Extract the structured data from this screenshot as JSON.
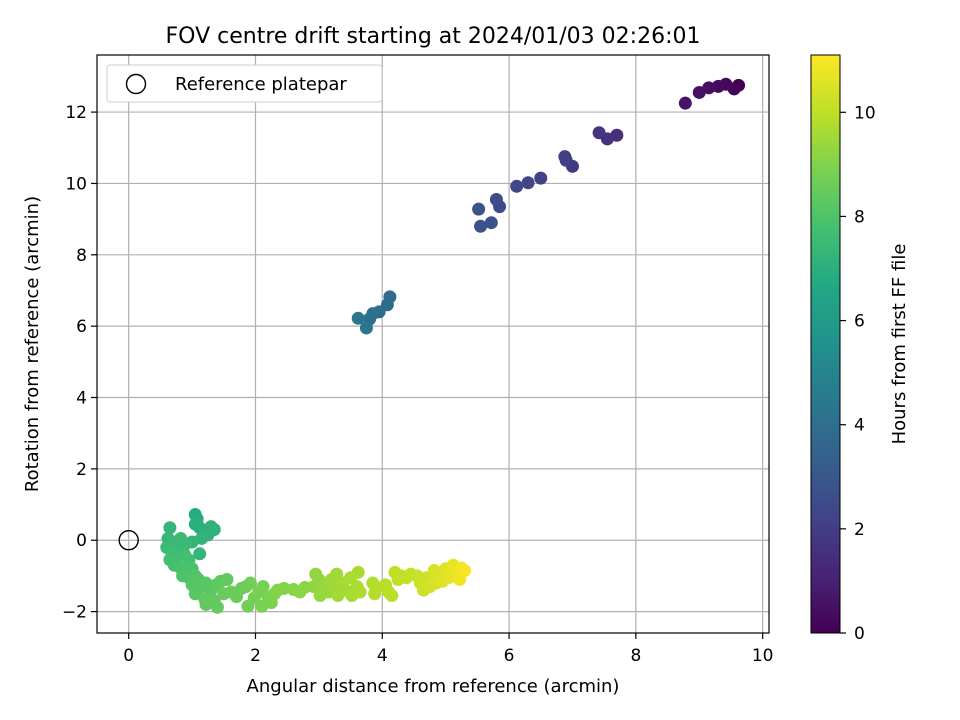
{
  "chart_data": {
    "type": "scatter",
    "title": "FOV centre drift starting at 2024/01/03 02:26:01",
    "xlabel": "Angular distance from reference (arcmin)",
    "ylabel": "Rotation from reference (arcmin)",
    "xlim": [
      -0.5,
      10.1
    ],
    "ylim": [
      -2.6,
      13.6
    ],
    "x_ticks": [
      0,
      2,
      4,
      6,
      8,
      10
    ],
    "y_ticks": [
      -2,
      0,
      2,
      4,
      6,
      8,
      10,
      12
    ],
    "x_tick_labels": [
      "0",
      "2",
      "4",
      "6",
      "8",
      "10"
    ],
    "y_tick_labels": [
      "−2",
      "0",
      "2",
      "4",
      "6",
      "8",
      "10",
      "12"
    ],
    "grid": true,
    "legend": {
      "placement": "upper-left",
      "label": "Reference platepar"
    },
    "reference_point": {
      "x": 0,
      "y": 0
    },
    "colorbar": {
      "label": "Hours from first FF file",
      "range": [
        0,
        11.1
      ],
      "ticks": [
        0,
        2,
        4,
        6,
        8,
        10
      ],
      "tick_labels": [
        "0",
        "2",
        "4",
        "6",
        "8",
        "10"
      ],
      "colormap": "viridis"
    },
    "series": [
      {
        "points": [
          {
            "x": 9.62,
            "y": 12.75,
            "t": 0.0
          },
          {
            "x": 9.55,
            "y": 12.65,
            "t": 0.1
          },
          {
            "x": 9.42,
            "y": 12.78,
            "t": 0.2
          },
          {
            "x": 9.3,
            "y": 12.72,
            "t": 0.3
          },
          {
            "x": 9.15,
            "y": 12.68,
            "t": 0.4
          },
          {
            "x": 9.0,
            "y": 12.55,
            "t": 0.5
          },
          {
            "x": 8.78,
            "y": 12.25,
            "t": 0.6
          },
          {
            "x": 7.7,
            "y": 11.35,
            "t": 1.5
          },
          {
            "x": 7.55,
            "y": 11.25,
            "t": 1.6
          },
          {
            "x": 7.42,
            "y": 11.42,
            "t": 1.7
          },
          {
            "x": 7.0,
            "y": 10.48,
            "t": 1.9
          },
          {
            "x": 6.9,
            "y": 10.65,
            "t": 2.0
          },
          {
            "x": 6.88,
            "y": 10.75,
            "t": 2.05
          },
          {
            "x": 6.5,
            "y": 10.15,
            "t": 2.2
          },
          {
            "x": 6.3,
            "y": 10.02,
            "t": 2.3
          },
          {
            "x": 6.12,
            "y": 9.92,
            "t": 2.4
          },
          {
            "x": 5.85,
            "y": 9.35,
            "t": 2.55
          },
          {
            "x": 5.8,
            "y": 9.55,
            "t": 2.6
          },
          {
            "x": 5.72,
            "y": 8.9,
            "t": 2.7
          },
          {
            "x": 5.55,
            "y": 8.8,
            "t": 2.8
          },
          {
            "x": 5.52,
            "y": 9.28,
            "t": 2.85
          },
          {
            "x": 4.12,
            "y": 6.82,
            "t": 3.8
          },
          {
            "x": 4.08,
            "y": 6.6,
            "t": 3.85
          },
          {
            "x": 3.95,
            "y": 6.4,
            "t": 3.9
          },
          {
            "x": 3.85,
            "y": 6.35,
            "t": 4.0
          },
          {
            "x": 3.8,
            "y": 6.2,
            "t": 4.1
          },
          {
            "x": 3.75,
            "y": 5.95,
            "t": 4.2
          },
          {
            "x": 3.62,
            "y": 6.22,
            "t": 4.3
          },
          {
            "x": 1.05,
            "y": 0.72,
            "t": 6.8
          },
          {
            "x": 1.08,
            "y": 0.6,
            "t": 6.9
          },
          {
            "x": 1.05,
            "y": 0.45,
            "t": 7.0
          },
          {
            "x": 1.12,
            "y": 0.35,
            "t": 7.0
          },
          {
            "x": 1.2,
            "y": 0.25,
            "t": 7.05
          },
          {
            "x": 1.25,
            "y": 0.15,
            "t": 7.1
          },
          {
            "x": 1.35,
            "y": 0.3,
            "t": 7.1
          },
          {
            "x": 1.3,
            "y": 0.38,
            "t": 7.15
          },
          {
            "x": 1.15,
            "y": 0.05,
            "t": 7.2
          },
          {
            "x": 1.0,
            "y": -0.05,
            "t": 7.25
          },
          {
            "x": 1.12,
            "y": -0.38,
            "t": 7.3
          },
          {
            "x": 0.65,
            "y": 0.35,
            "t": 7.3
          },
          {
            "x": 0.62,
            "y": 0.05,
            "t": 7.35
          },
          {
            "x": 0.7,
            "y": -0.05,
            "t": 7.4
          },
          {
            "x": 0.75,
            "y": -0.15,
            "t": 7.45
          },
          {
            "x": 0.82,
            "y": 0.05,
            "t": 7.5
          },
          {
            "x": 0.9,
            "y": -0.1,
            "t": 7.5
          },
          {
            "x": 0.6,
            "y": -0.2,
            "t": 7.55
          },
          {
            "x": 0.68,
            "y": -0.35,
            "t": 7.6
          },
          {
            "x": 0.78,
            "y": -0.45,
            "t": 7.65
          },
          {
            "x": 0.88,
            "y": -0.4,
            "t": 7.7
          },
          {
            "x": 0.95,
            "y": -0.55,
            "t": 7.75
          },
          {
            "x": 0.65,
            "y": -0.55,
            "t": 7.75
          },
          {
            "x": 0.72,
            "y": -0.7,
            "t": 7.8
          },
          {
            "x": 0.82,
            "y": -0.78,
            "t": 7.85
          },
          {
            "x": 0.9,
            "y": -0.85,
            "t": 7.9
          },
          {
            "x": 1.0,
            "y": -0.8,
            "t": 7.9
          },
          {
            "x": 0.85,
            "y": -1.0,
            "t": 7.95
          },
          {
            "x": 0.95,
            "y": -1.05,
            "t": 8.0
          },
          {
            "x": 1.05,
            "y": -1.0,
            "t": 8.05
          },
          {
            "x": 1.1,
            "y": -1.1,
            "t": 8.1
          },
          {
            "x": 1.0,
            "y": -1.25,
            "t": 8.1
          },
          {
            "x": 1.15,
            "y": -1.3,
            "t": 8.15
          },
          {
            "x": 1.22,
            "y": -1.2,
            "t": 8.2
          },
          {
            "x": 1.05,
            "y": -1.5,
            "t": 8.2
          },
          {
            "x": 1.3,
            "y": -1.4,
            "t": 8.25
          },
          {
            "x": 1.38,
            "y": -1.25,
            "t": 8.3
          },
          {
            "x": 1.45,
            "y": -1.15,
            "t": 8.3
          },
          {
            "x": 1.55,
            "y": -1.1,
            "t": 8.35
          },
          {
            "x": 1.2,
            "y": -1.65,
            "t": 8.35
          },
          {
            "x": 1.35,
            "y": -1.7,
            "t": 8.4
          },
          {
            "x": 1.22,
            "y": -1.8,
            "t": 8.4
          },
          {
            "x": 1.4,
            "y": -1.88,
            "t": 8.45
          },
          {
            "x": 1.5,
            "y": -1.5,
            "t": 8.5
          },
          {
            "x": 1.62,
            "y": -1.45,
            "t": 8.55
          },
          {
            "x": 1.7,
            "y": -1.58,
            "t": 8.6
          },
          {
            "x": 1.78,
            "y": -1.35,
            "t": 8.6
          },
          {
            "x": 1.85,
            "y": -1.3,
            "t": 8.65
          },
          {
            "x": 1.92,
            "y": -1.2,
            "t": 8.7
          },
          {
            "x": 1.88,
            "y": -1.85,
            "t": 8.7
          },
          {
            "x": 1.98,
            "y": -1.62,
            "t": 8.75
          },
          {
            "x": 2.05,
            "y": -1.45,
            "t": 8.8
          },
          {
            "x": 2.12,
            "y": -1.3,
            "t": 8.8
          },
          {
            "x": 2.1,
            "y": -1.85,
            "t": 8.85
          },
          {
            "x": 2.2,
            "y": -1.6,
            "t": 8.9
          },
          {
            "x": 2.25,
            "y": -1.75,
            "t": 8.9
          },
          {
            "x": 2.3,
            "y": -1.5,
            "t": 8.95
          },
          {
            "x": 2.35,
            "y": -1.4,
            "t": 9.0
          },
          {
            "x": 2.45,
            "y": -1.35,
            "t": 9.05
          },
          {
            "x": 2.6,
            "y": -1.38,
            "t": 9.1
          },
          {
            "x": 2.7,
            "y": -1.45,
            "t": 9.15
          },
          {
            "x": 2.78,
            "y": -1.32,
            "t": 9.2
          },
          {
            "x": 2.92,
            "y": -1.3,
            "t": 9.25
          },
          {
            "x": 2.95,
            "y": -0.95,
            "t": 9.3
          },
          {
            "x": 3.0,
            "y": -1.1,
            "t": 9.3
          },
          {
            "x": 3.02,
            "y": -1.55,
            "t": 9.35
          },
          {
            "x": 3.1,
            "y": -1.25,
            "t": 9.4
          },
          {
            "x": 3.15,
            "y": -1.45,
            "t": 9.4
          },
          {
            "x": 3.2,
            "y": -1.1,
            "t": 9.45
          },
          {
            "x": 3.25,
            "y": -1.3,
            "t": 9.5
          },
          {
            "x": 3.28,
            "y": -0.95,
            "t": 9.5
          },
          {
            "x": 3.3,
            "y": -1.55,
            "t": 9.55
          },
          {
            "x": 3.38,
            "y": -1.2,
            "t": 9.6
          },
          {
            "x": 3.42,
            "y": -1.4,
            "t": 9.6
          },
          {
            "x": 3.5,
            "y": -1.05,
            "t": 9.65
          },
          {
            "x": 3.52,
            "y": -1.55,
            "t": 9.65
          },
          {
            "x": 3.6,
            "y": -1.3,
            "t": 9.7
          },
          {
            "x": 3.62,
            "y": -0.9,
            "t": 9.7
          },
          {
            "x": 3.65,
            "y": -1.45,
            "t": 9.75
          },
          {
            "x": 3.85,
            "y": -1.2,
            "t": 9.8
          },
          {
            "x": 3.9,
            "y": -1.35,
            "t": 9.85
          },
          {
            "x": 3.88,
            "y": -1.5,
            "t": 9.85
          },
          {
            "x": 4.05,
            "y": -1.25,
            "t": 9.9
          },
          {
            "x": 4.1,
            "y": -1.45,
            "t": 9.95
          },
          {
            "x": 4.15,
            "y": -1.55,
            "t": 9.95
          },
          {
            "x": 4.2,
            "y": -0.9,
            "t": 10.0
          },
          {
            "x": 4.25,
            "y": -1.1,
            "t": 10.05
          },
          {
            "x": 4.3,
            "y": -1.0,
            "t": 10.05
          },
          {
            "x": 4.38,
            "y": -1.05,
            "t": 10.1
          },
          {
            "x": 4.45,
            "y": -0.95,
            "t": 10.15
          },
          {
            "x": 4.55,
            "y": -1.0,
            "t": 10.2
          },
          {
            "x": 4.6,
            "y": -1.2,
            "t": 10.25
          },
          {
            "x": 4.65,
            "y": -1.4,
            "t": 10.25
          },
          {
            "x": 4.7,
            "y": -1.05,
            "t": 10.3
          },
          {
            "x": 4.75,
            "y": -1.3,
            "t": 10.35
          },
          {
            "x": 4.82,
            "y": -0.85,
            "t": 10.4
          },
          {
            "x": 4.85,
            "y": -1.2,
            "t": 10.45
          },
          {
            "x": 4.9,
            "y": -1.0,
            "t": 10.5
          },
          {
            "x": 4.95,
            "y": -1.15,
            "t": 10.55
          },
          {
            "x": 5.0,
            "y": -0.8,
            "t": 10.6
          },
          {
            "x": 5.05,
            "y": -1.05,
            "t": 10.65
          },
          {
            "x": 5.1,
            "y": -0.9,
            "t": 10.7
          },
          {
            "x": 5.12,
            "y": -0.7,
            "t": 10.75
          },
          {
            "x": 5.18,
            "y": -0.85,
            "t": 10.8
          },
          {
            "x": 5.22,
            "y": -1.1,
            "t": 10.85
          },
          {
            "x": 5.25,
            "y": -0.78,
            "t": 10.9
          },
          {
            "x": 5.3,
            "y": -0.85,
            "t": 11.0
          }
        ]
      }
    ]
  }
}
